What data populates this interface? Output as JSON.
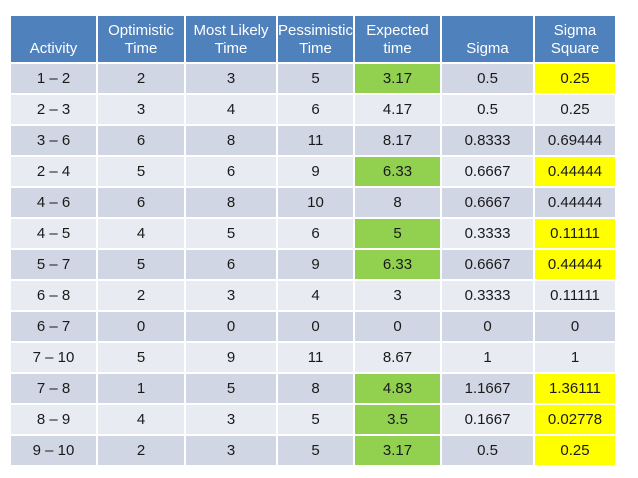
{
  "table": {
    "headers": [
      "Activity",
      "Optimistic\nTime",
      "Most Likely\nTime",
      "Pessimistic\nTime",
      "Expected\ntime",
      "Sigma",
      "Sigma\nSquare"
    ],
    "rows": [
      {
        "activity": "1 – 2",
        "optimistic": "2",
        "most_likely": "3",
        "pessimistic": "5",
        "expected": "3.17",
        "sigma": "0.5",
        "sigma_square": "0.25",
        "highlight": true
      },
      {
        "activity": "2 – 3",
        "optimistic": "3",
        "most_likely": "4",
        "pessimistic": "6",
        "expected": "4.17",
        "sigma": "0.5",
        "sigma_square": "0.25",
        "highlight": false
      },
      {
        "activity": "3 – 6",
        "optimistic": "6",
        "most_likely": "8",
        "pessimistic": "11",
        "expected": "8.17",
        "sigma": "0.8333",
        "sigma_square": "0.69444",
        "highlight": false
      },
      {
        "activity": "2 – 4",
        "optimistic": "5",
        "most_likely": "6",
        "pessimistic": "9",
        "expected": "6.33",
        "sigma": "0.6667",
        "sigma_square": "0.44444",
        "highlight": true
      },
      {
        "activity": "4 – 6",
        "optimistic": "6",
        "most_likely": "8",
        "pessimistic": "10",
        "expected": "8",
        "sigma": "0.6667",
        "sigma_square": "0.44444",
        "highlight": false
      },
      {
        "activity": "4 – 5",
        "optimistic": "4",
        "most_likely": "5",
        "pessimistic": "6",
        "expected": "5",
        "sigma": "0.3333",
        "sigma_square": "0.11111",
        "highlight": true
      },
      {
        "activity": "5 – 7",
        "optimistic": "5",
        "most_likely": "6",
        "pessimistic": "9",
        "expected": "6.33",
        "sigma": "0.6667",
        "sigma_square": "0.44444",
        "highlight": true
      },
      {
        "activity": "6 – 8",
        "optimistic": "2",
        "most_likely": "3",
        "pessimistic": "4",
        "expected": "3",
        "sigma": "0.3333",
        "sigma_square": "0.11111",
        "highlight": false
      },
      {
        "activity": "6 – 7",
        "optimistic": "0",
        "most_likely": "0",
        "pessimistic": "0",
        "expected": "0",
        "sigma": "0",
        "sigma_square": "0",
        "highlight": false
      },
      {
        "activity": "7 – 10",
        "optimistic": "5",
        "most_likely": "9",
        "pessimistic": "11",
        "expected": "8.67",
        "sigma": "1",
        "sigma_square": "1",
        "highlight": false
      },
      {
        "activity": "7 – 8",
        "optimistic": "1",
        "most_likely": "5",
        "pessimistic": "8",
        "expected": "4.83",
        "sigma": "1.1667",
        "sigma_square": "1.36111",
        "highlight": true
      },
      {
        "activity": "8 – 9",
        "optimistic": "4",
        "most_likely": "3",
        "pessimistic": "5",
        "expected": "3.5",
        "sigma": "0.1667",
        "sigma_square": "0.02778",
        "highlight": true
      },
      {
        "activity": "9 – 10",
        "optimistic": "2",
        "most_likely": "3",
        "pessimistic": "5",
        "expected": "3.17",
        "sigma": "0.5",
        "sigma_square": "0.25",
        "highlight": true
      }
    ],
    "colors": {
      "header_bg": "#4F81BD",
      "band_dark": "#D0D6E4",
      "band_light": "#E9EBF3",
      "green": "#92D050",
      "yellow": "#FFFF00"
    }
  }
}
